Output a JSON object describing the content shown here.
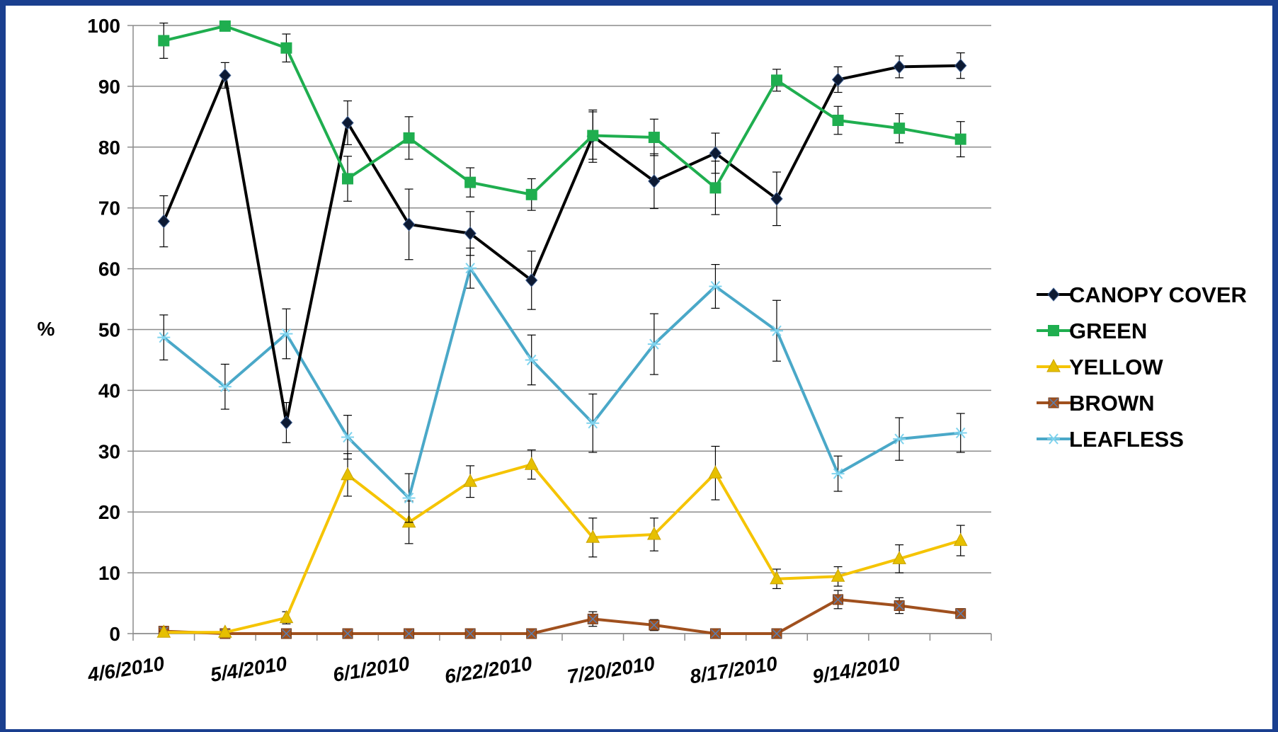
{
  "chart_data": {
    "type": "line",
    "title": "",
    "xlabel": "",
    "ylabel": "%",
    "ylim": [
      0,
      100
    ],
    "yticks": [
      0,
      10,
      20,
      30,
      40,
      50,
      60,
      70,
      80,
      90,
      100
    ],
    "x_tick_labels": [
      "4/6/2010",
      "5/4/2010",
      "6/1/2010",
      "6/22/2010",
      "7/20/2010",
      "8/17/2010",
      "9/14/2010"
    ],
    "points": 14,
    "grid": "horizontal",
    "legend_position": "right",
    "series": [
      {
        "name": "CANOPY COVER",
        "color": "#000000",
        "marker": "diamond",
        "values": [
          67.8,
          91.8,
          34.7,
          84.0,
          67.3,
          65.8,
          58.1,
          81.8,
          74.4,
          79.0,
          71.5,
          91.1,
          93.2,
          93.4
        ],
        "errors": [
          4.2,
          2.1,
          3.3,
          3.6,
          5.8,
          3.6,
          4.8,
          4.3,
          4.5,
          3.3,
          4.4,
          2.1,
          1.8,
          2.1
        ]
      },
      {
        "name": "GREEN",
        "color": "#1fae4f",
        "marker": "square",
        "values": [
          97.5,
          99.9,
          96.3,
          74.8,
          81.5,
          74.2,
          72.2,
          81.9,
          81.6,
          73.3,
          91.0,
          84.4,
          83.1,
          81.3
        ],
        "errors": [
          2.9,
          0.2,
          2.3,
          3.7,
          3.5,
          2.4,
          2.6,
          3.9,
          3.0,
          4.4,
          1.8,
          2.3,
          2.4,
          2.9
        ]
      },
      {
        "name": "YELLOW",
        "color": "#f5c400",
        "marker": "triangle",
        "values": [
          0.2,
          0.2,
          2.6,
          26.1,
          18.3,
          25.0,
          27.8,
          15.8,
          16.3,
          26.4,
          9.0,
          9.4,
          12.3,
          15.3
        ],
        "errors": [
          0.2,
          0.2,
          1.0,
          3.5,
          3.5,
          2.6,
          2.4,
          3.2,
          2.7,
          4.4,
          1.6,
          1.6,
          2.3,
          2.5
        ]
      },
      {
        "name": "BROWN",
        "color": "#a0501e",
        "marker": "square-x",
        "values": [
          0.4,
          0.0,
          0.0,
          0.0,
          0.0,
          0.0,
          0.0,
          2.4,
          1.4,
          0.0,
          0.0,
          5.6,
          4.6,
          3.3
        ],
        "errors": [
          0.3,
          0.0,
          0.0,
          0.0,
          0.0,
          0.0,
          0.0,
          1.2,
          0.9,
          0.0,
          0.0,
          1.5,
          1.3,
          0.8
        ]
      },
      {
        "name": "LEAFLESS",
        "color": "#4aa8c8",
        "marker": "asterisk",
        "values": [
          48.7,
          40.6,
          49.3,
          32.3,
          22.3,
          60.1,
          45.0,
          34.6,
          47.6,
          57.1,
          49.8,
          26.3,
          32.0,
          33.0
        ],
        "errors": [
          3.7,
          3.7,
          4.1,
          3.6,
          4.0,
          3.3,
          4.1,
          4.8,
          5.0,
          3.6,
          5.0,
          2.9,
          3.5,
          3.2
        ]
      }
    ]
  }
}
